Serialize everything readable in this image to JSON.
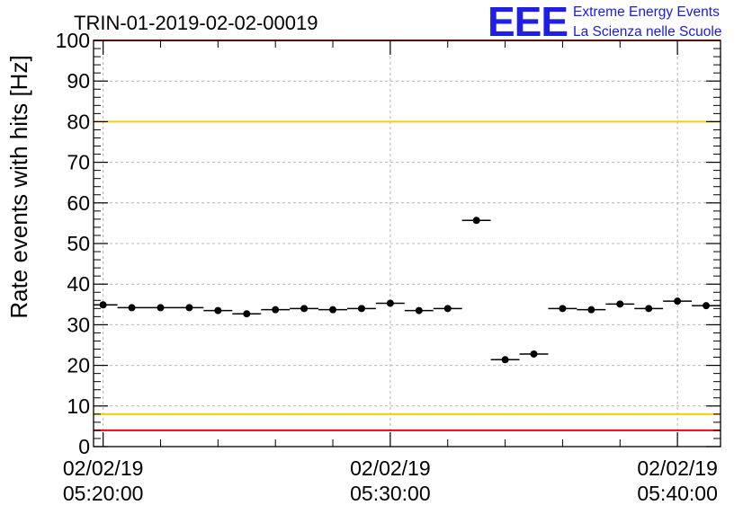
{
  "logo": {
    "mark": "EEE",
    "line1": "Extreme Energy Events",
    "line2": "La Scienza nelle Scuole",
    "color": "#1f1fe6"
  },
  "chart_data": {
    "type": "scatter",
    "title": "TRIN-01-2019-02-02-00019",
    "xlabel": "",
    "ylabel": "Rate events with hits [Hz]",
    "ylim": [
      0,
      100
    ],
    "yticks": [
      0,
      10,
      20,
      30,
      40,
      50,
      60,
      70,
      80,
      90,
      100
    ],
    "xlim": [
      "02/02/19 05:19:40",
      "02/02/19 05:41:30"
    ],
    "xticks": [
      {
        "date": "02/02/19",
        "time": "05:20:00"
      },
      {
        "date": "02/02/19",
        "time": "05:30:00"
      },
      {
        "date": "02/02/19",
        "time": "05:40:00"
      }
    ],
    "grid": true,
    "reference_lines": [
      {
        "y": 100,
        "color": "#ff0000"
      },
      {
        "y": 80,
        "color": "#ffcc00"
      },
      {
        "y": 8,
        "color": "#ffcc00"
      },
      {
        "y": 4,
        "color": "#ff0000"
      }
    ],
    "series": [
      {
        "marker_color": "#000000",
        "x": [
          "05:20:00",
          "05:21:00",
          "05:22:00",
          "05:23:00",
          "05:24:00",
          "05:25:00",
          "05:26:00",
          "05:27:00",
          "05:28:00",
          "05:29:00",
          "05:30:00",
          "05:31:00",
          "05:32:00",
          "05:33:00",
          "05:34:00",
          "05:35:00",
          "05:36:00",
          "05:37:00",
          "05:38:00",
          "05:39:00",
          "05:40:00",
          "05:41:00"
        ],
        "y": [
          34.9,
          34.2,
          34.2,
          34.2,
          33.5,
          32.7,
          33.7,
          34.0,
          33.7,
          34.0,
          35.3,
          33.5,
          34.0,
          55.7,
          21.4,
          22.8,
          34.0,
          33.7,
          35.1,
          34.0,
          35.8,
          34.7
        ],
        "xerr_seconds": 30
      }
    ]
  }
}
